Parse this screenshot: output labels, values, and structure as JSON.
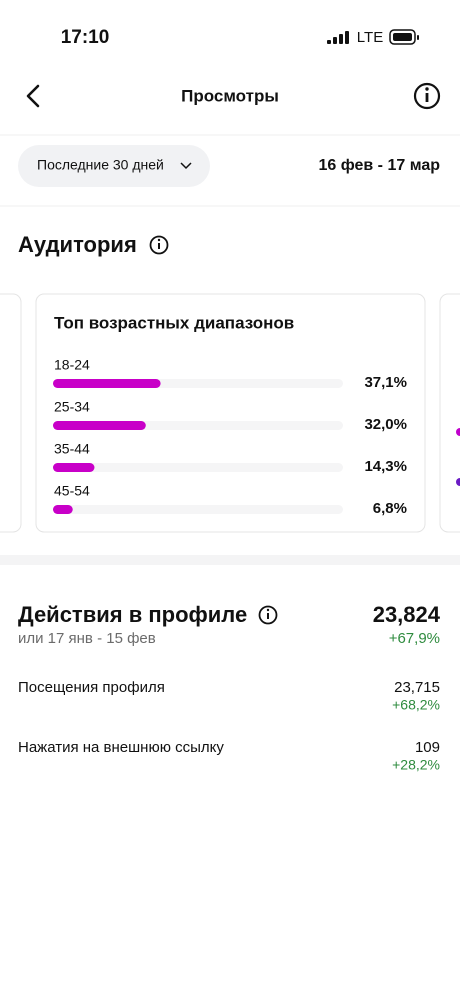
{
  "status_bar": {
    "time": "17:10",
    "network": "LTE"
  },
  "header": {
    "title": "Просмотры"
  },
  "filter": {
    "period": "Последние 30 дней",
    "date_range": "16 фев - 17 мар"
  },
  "audience": {
    "title": "Аудитория",
    "card": {
      "title": "Топ возрастных диапазонов",
      "rows": [
        {
          "label": "18-24",
          "value": 37.1,
          "value_label": "37,1%"
        },
        {
          "label": "25-34",
          "value": 32.0,
          "value_label": "32,0%"
        },
        {
          "label": "35-44",
          "value": 14.3,
          "value_label": "14,3%"
        },
        {
          "label": "45-54",
          "value": 6.8,
          "value_label": "6,8%"
        }
      ]
    }
  },
  "profile_actions": {
    "title": "Действия в профиле",
    "total": "23,824",
    "comparison": "или 17 янв - 15 фев",
    "change": "+67,9%",
    "items": [
      {
        "label": "Посещения профиля",
        "value": "23,715",
        "change": "+68,2%"
      },
      {
        "label": "Нажатия на внешнюю ссылку",
        "value": "109",
        "change": "+28,2%"
      }
    ]
  }
}
